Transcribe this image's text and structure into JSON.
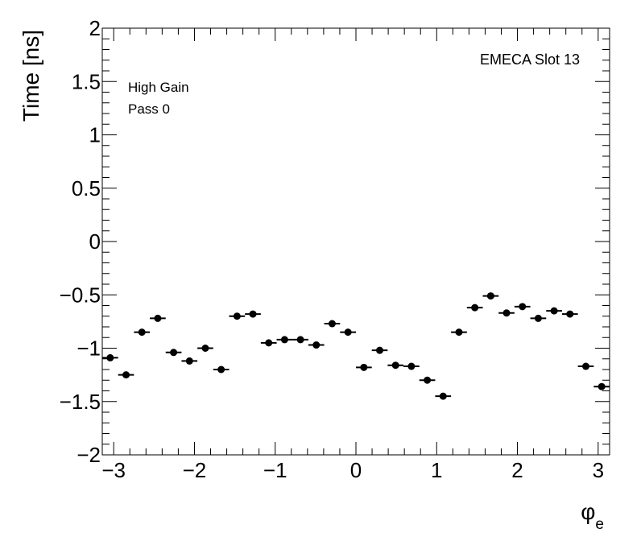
{
  "chart_data": {
    "type": "scatter",
    "title": "",
    "xlabel": "φ",
    "xlabel_sub": "e",
    "ylabel": "Time [ns]",
    "xlim": [
      -3.1416,
      3.1416
    ],
    "ylim": [
      -2,
      2
    ],
    "x_ticks": [
      -3,
      -2,
      -1,
      0,
      1,
      2,
      3
    ],
    "x_tick_labels": [
      "−3",
      "−2",
      "−1",
      "0",
      "1",
      "2",
      "3"
    ],
    "y_ticks": [
      -2,
      -1.5,
      -1,
      -0.5,
      0,
      0.5,
      1,
      1.5,
      2
    ],
    "y_tick_labels": [
      "−2",
      "−1.5",
      "−1",
      "−0.5",
      "0",
      "0.5",
      "1",
      "1.5",
      "2"
    ],
    "grid": false,
    "marker_color": "#000000",
    "bin_width": 0.19635,
    "annotations": {
      "gain": "High Gain",
      "pass": "Pass 0",
      "slot": "EMECA Slot 13"
    },
    "series": [
      {
        "x": [
          -3.0434,
          -2.8471,
          -2.6507,
          -2.4544,
          -2.258,
          -2.0617,
          -1.8653,
          -1.669,
          -1.4726,
          -1.2763,
          -1.0799,
          -0.8836,
          -0.6872,
          -0.4909,
          -0.2945,
          -0.0982,
          0.0982,
          0.2945,
          0.4909,
          0.6872,
          0.8836,
          1.0799,
          1.2763,
          1.4726,
          1.669,
          1.8653,
          2.0617,
          2.258,
          2.4544,
          2.6507,
          2.8471,
          3.0434
        ],
        "y": [
          -1.09,
          -1.25,
          -0.85,
          -0.72,
          -1.04,
          -1.12,
          -1.0,
          -1.2,
          -0.7,
          -0.68,
          -0.95,
          -0.92,
          -0.92,
          -0.97,
          -0.77,
          -0.85,
          -1.18,
          -1.02,
          -1.16,
          -1.17,
          -1.3,
          -1.45,
          -0.85,
          -0.62,
          -0.51,
          -0.67,
          -0.61,
          -0.72,
          -0.65,
          -0.68,
          -1.17,
          -1.36
        ]
      }
    ]
  }
}
